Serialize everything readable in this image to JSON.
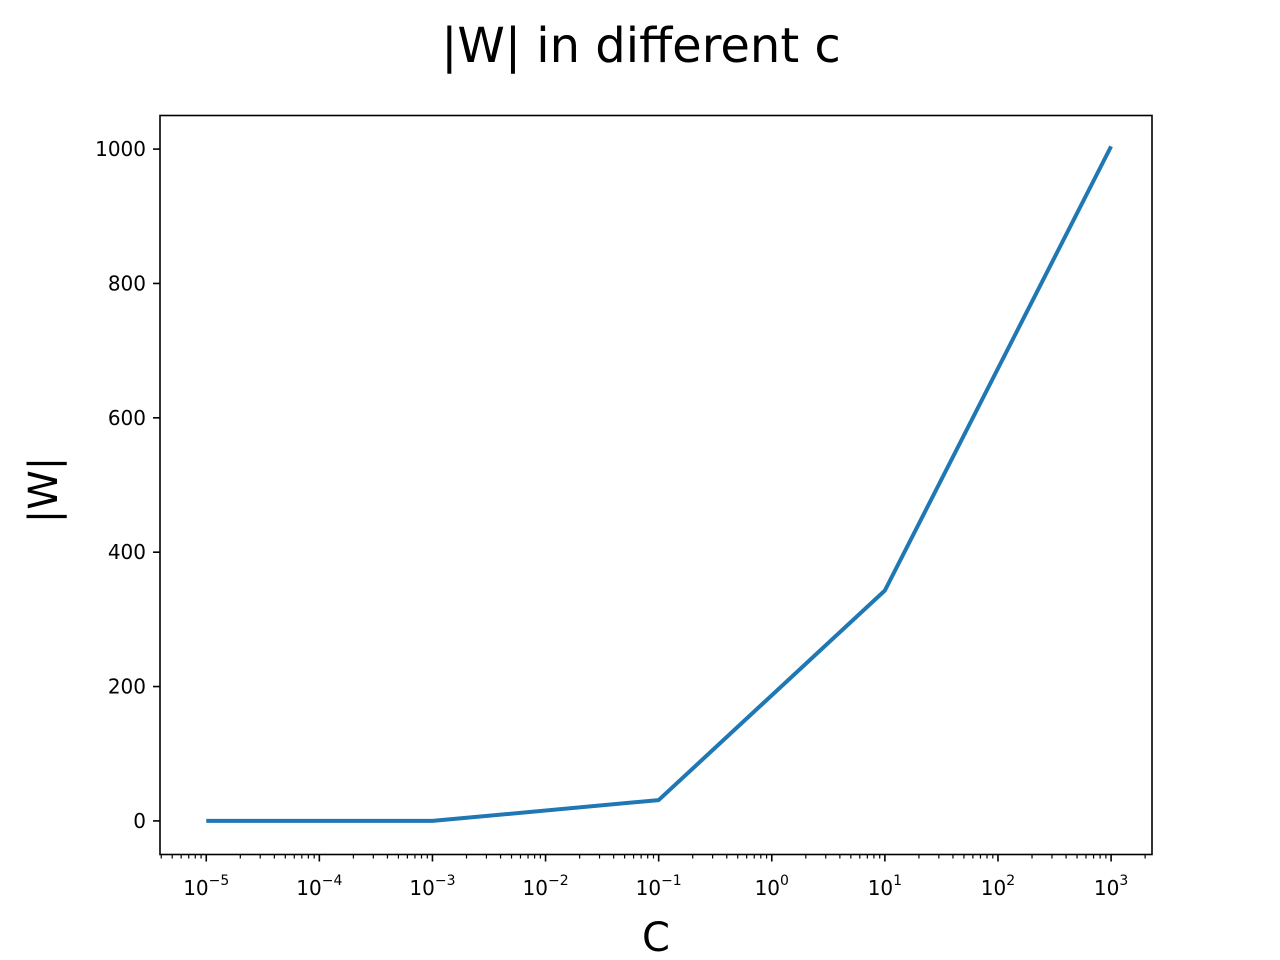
{
  "chart_data": {
    "type": "line",
    "title": "|W| in different c",
    "xlabel": "C",
    "ylabel": "|W|",
    "xscale": "log",
    "x_tick_labels": [
      {
        "base": "10",
        "exp": "−5"
      },
      {
        "base": "10",
        "exp": "−4"
      },
      {
        "base": "10",
        "exp": "−3"
      },
      {
        "base": "10",
        "exp": "−2"
      },
      {
        "base": "10",
        "exp": "−1"
      },
      {
        "base": "10",
        "exp": "0"
      },
      {
        "base": "10",
        "exp": "1"
      },
      {
        "base": "10",
        "exp": "2"
      },
      {
        "base": "10",
        "exp": "3"
      }
    ],
    "y_tick_labels": [
      "0",
      "200",
      "400",
      "600",
      "800",
      "1000"
    ],
    "xlim": [
      3.9e-06,
      2300
    ],
    "ylim": [
      -50,
      1050
    ],
    "grid": false,
    "series": [
      {
        "color": "#1f77b4",
        "x": [
          1e-05,
          0.001,
          0.1,
          10,
          1000
        ],
        "y": [
          0,
          0,
          31,
          343,
          1004
        ]
      }
    ]
  }
}
